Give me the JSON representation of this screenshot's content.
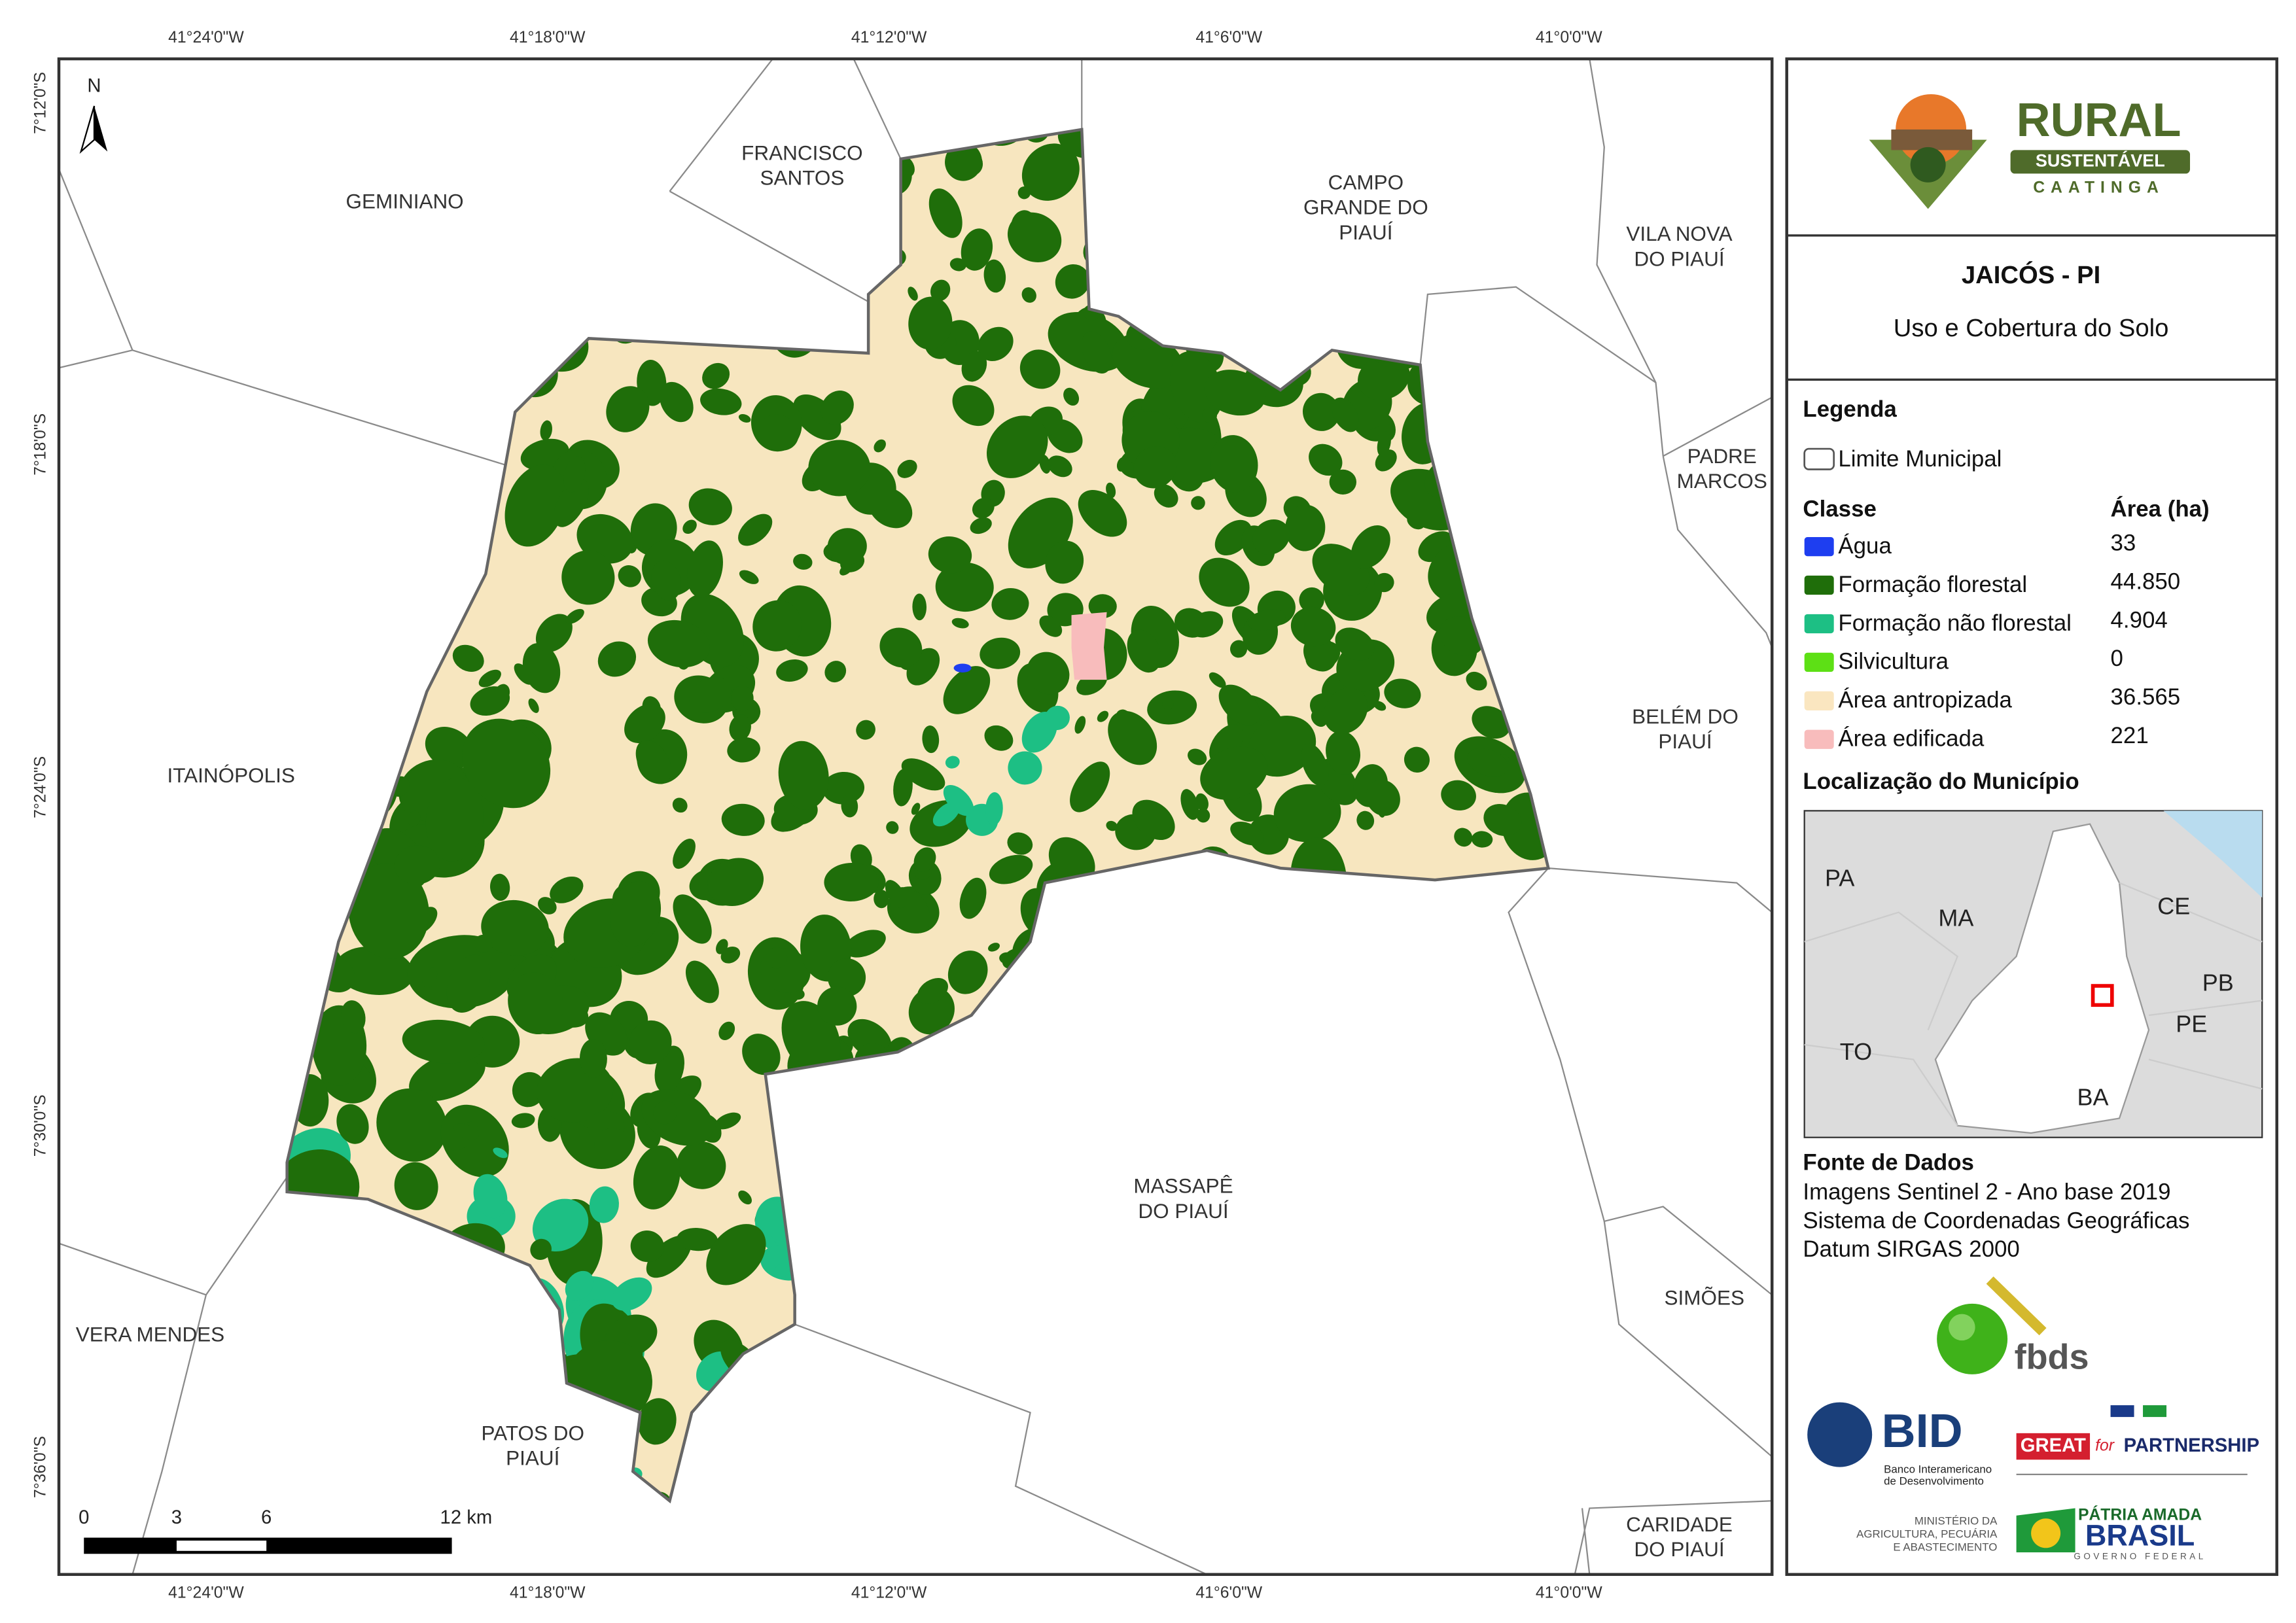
{
  "map": {
    "coords_top": [
      "41°24'0\"W",
      "41°18'0\"W",
      "41°12'0\"W",
      "41°6'0\"W",
      "41°0'0\"W"
    ],
    "coords_bottom": [
      "41°24'0\"W",
      "41°18'0\"W",
      "41°12'0\"W",
      "41°6'0\"W",
      "41°0'0\"W"
    ],
    "coords_left": [
      "7°12'0\"S",
      "7°18'0\"S",
      "7°24'0\"S",
      "7°30'0\"S",
      "7°36'0\"S"
    ],
    "north": "N",
    "scale_labels": [
      "0",
      "3",
      "6",
      "12 km"
    ],
    "places": [
      {
        "lines": [
          "GEMINIANO"
        ]
      },
      {
        "lines": [
          "FRANCISCO",
          "SANTOS"
        ]
      },
      {
        "lines": [
          "CAMPO",
          "GRANDE DO",
          "PIAUÍ"
        ]
      },
      {
        "lines": [
          "VILA NOVA",
          "DO PIAUÍ"
        ]
      },
      {
        "lines": [
          "PADRE",
          "MARCOS"
        ]
      },
      {
        "lines": [
          "BELÉM DO",
          "PIAUÍ"
        ]
      },
      {
        "lines": [
          "ITAINÓPOLIS"
        ]
      },
      {
        "lines": [
          "MASSAPÊ",
          "DO PIAUÍ"
        ]
      },
      {
        "lines": [
          "SIMÕES"
        ]
      },
      {
        "lines": [
          "VERA MENDES"
        ]
      },
      {
        "lines": [
          "PATOS DO",
          "PIAUÍ"
        ]
      },
      {
        "lines": [
          "CARIDADE",
          "DO PIAUÍ"
        ]
      }
    ]
  },
  "panel": {
    "logo": {
      "title": "RURAL",
      "subtitle": "SUSTENTÁVEL",
      "region": "CAATINGA"
    },
    "title": "JAICÓS - PI",
    "subtitle": "Uso e Cobertura do Solo",
    "legend_title": "Legenda",
    "boundary": "Limite Municipal",
    "class_header": "Classe",
    "area_header": "Área (ha)",
    "classes": [
      {
        "name": "Água",
        "area": "33",
        "color": "#1e3ef0"
      },
      {
        "name": "Formação florestal",
        "area": "44.850",
        "color": "#1f6e0a"
      },
      {
        "name": "Formação não florestal",
        "area": "4.904",
        "color": "#1dbf84"
      },
      {
        "name": "Silvicultura",
        "area": "0",
        "color": "#5de015"
      },
      {
        "name": "Área antropizada",
        "area": "36.565",
        "color": "#fae6c0"
      },
      {
        "name": "Área edificada",
        "area": "221",
        "color": "#f8bcbc"
      }
    ],
    "location_title": "Localização do Município",
    "inset_labels": [
      "PA",
      "MA",
      "CE",
      "PB",
      "PE",
      "TO",
      "BA"
    ],
    "sources_title": "Fonte de Dados",
    "sources": [
      "Imagens Sentinel 2 - Ano base 2019",
      "Sistema de Coordenadas Geográficas",
      "Datum SIRGAS 2000"
    ],
    "logos": {
      "fbds": "fbds",
      "bid": "BID",
      "bid_name": [
        "Banco Interamericano",
        "de Desenvolvimento"
      ],
      "great": "GREAT",
      "great_for": "for",
      "great_partner": "PARTNERSHIP",
      "ministry": [
        "MINISTÉRIO DA",
        "AGRICULTURA, PECUÁRIA",
        "E ABASTECIMENTO"
      ],
      "patria": "PÁTRIA AMADA",
      "brasil": "BRASIL",
      "gov": "GOVERNO FEDERAL"
    }
  }
}
